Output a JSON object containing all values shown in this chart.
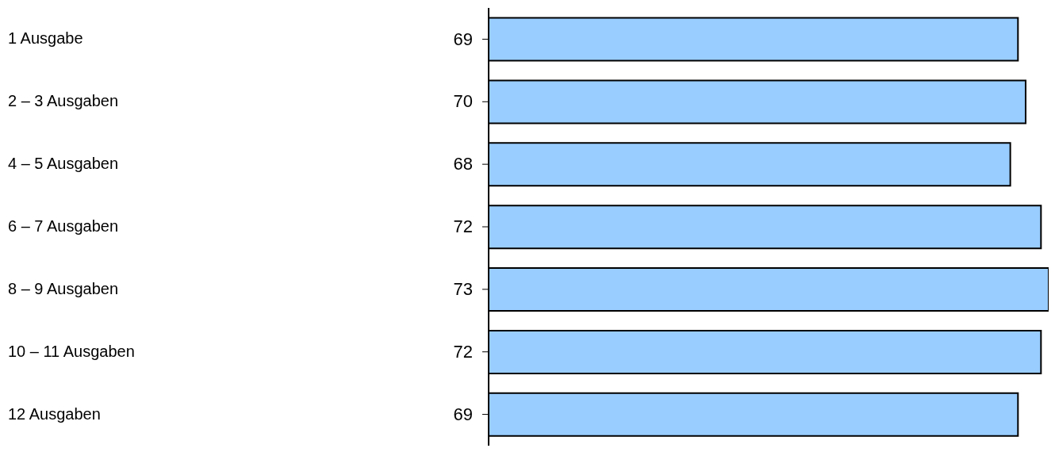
{
  "chart_data": {
    "type": "bar",
    "orientation": "horizontal",
    "categories": [
      "1 Ausgabe",
      "2 – 3 Ausgaben",
      "4 – 5 Ausgaben",
      "6 – 7 Ausgaben",
      "8 – 9 Ausgaben",
      "10 – 11 Ausgaben",
      "12 Ausgaben"
    ],
    "values": [
      69,
      70,
      68,
      72,
      73,
      72,
      69
    ],
    "color": "#99ccff",
    "data_labels": true,
    "grid": false,
    "tick_labels": "y"
  }
}
